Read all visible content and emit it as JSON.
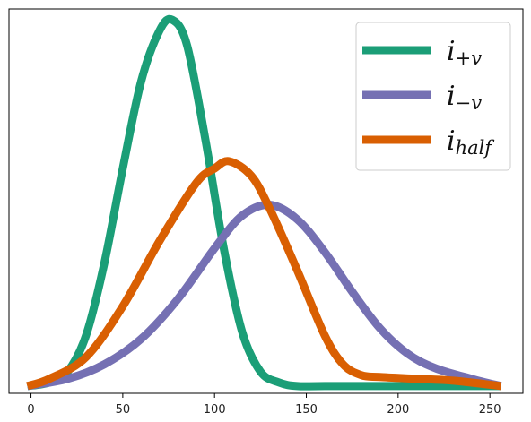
{
  "chart_data": {
    "type": "line",
    "title": "",
    "xlabel": "",
    "ylabel": "",
    "xlim": [
      -12,
      268
    ],
    "ylim": [
      0,
      1.06
    ],
    "grid": false,
    "legend_position": "top-right",
    "x_ticks": [
      0,
      50,
      100,
      150,
      200,
      250
    ],
    "x_tick_labels": [
      "0",
      "50",
      "100",
      "150",
      "200",
      "250"
    ],
    "y_ticks_visible": false,
    "series": [
      {
        "name": "i_{+v}",
        "legend_main": "i",
        "legend_sub": "+v",
        "color": "#1b9e77",
        "x": [
          -2,
          10,
          20,
          30,
          40,
          50,
          60,
          70,
          77,
          85,
          95,
          105,
          115,
          125,
          135,
          145,
          160,
          200,
          256
        ],
        "y": [
          0.02,
          0.03,
          0.06,
          0.16,
          0.36,
          0.62,
          0.86,
          1.0,
          1.03,
          0.96,
          0.7,
          0.4,
          0.17,
          0.06,
          0.03,
          0.02,
          0.02,
          0.02,
          0.02
        ]
      },
      {
        "name": "i_{-v}",
        "legend_main": "i",
        "legend_sub": "−v",
        "color": "#7570b3",
        "x": [
          -2,
          20,
          40,
          60,
          80,
          100,
          115,
          130,
          145,
          160,
          175,
          190,
          205,
          220,
          240,
          256
        ],
        "y": [
          0.02,
          0.04,
          0.08,
          0.15,
          0.26,
          0.4,
          0.49,
          0.52,
          0.48,
          0.39,
          0.28,
          0.18,
          0.11,
          0.07,
          0.04,
          0.02
        ]
      },
      {
        "name": "i_{half}",
        "legend_main": "i",
        "legend_sub": "half",
        "color": "#d95f02",
        "x": [
          -2,
          10,
          30,
          50,
          70,
          90,
          100,
          108,
          120,
          130,
          145,
          160,
          170,
          180,
          190,
          210,
          230,
          256
        ],
        "y": [
          0.02,
          0.04,
          0.1,
          0.24,
          0.42,
          0.58,
          0.62,
          0.64,
          0.6,
          0.51,
          0.34,
          0.16,
          0.08,
          0.05,
          0.045,
          0.04,
          0.035,
          0.02
        ]
      }
    ]
  }
}
